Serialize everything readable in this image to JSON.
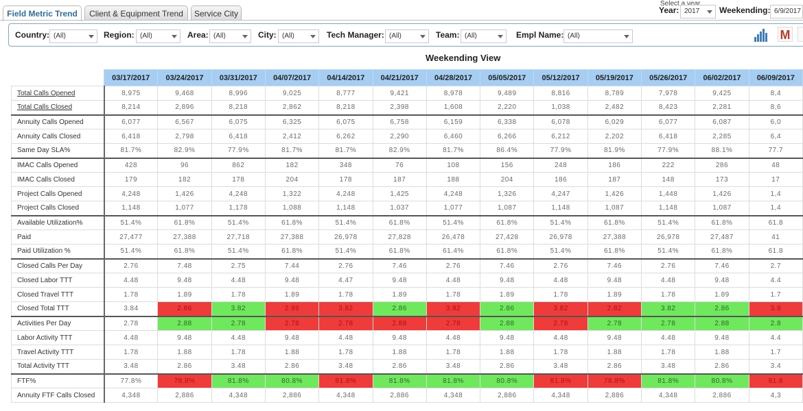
{
  "tabs": [
    {
      "label": "Field Metric Trend",
      "active": true
    },
    {
      "label": "Client & Equipment Trend",
      "active": false
    },
    {
      "label": "Service City",
      "active": false
    }
  ],
  "header": {
    "year_hint": "Select a year",
    "year_label": "Year:",
    "year_value": "2017",
    "weekending_label": "Weekending:",
    "weekending_value": "6/9/2017"
  },
  "filters": [
    {
      "label": "Country:",
      "value": "(All)"
    },
    {
      "label": "Region:",
      "value": "(All)"
    },
    {
      "label": "Area:",
      "value": "(All)"
    },
    {
      "label": "City:",
      "value": "(All)"
    },
    {
      "label": "Tech Manager:",
      "value": "(All)"
    },
    {
      "label": "Team:",
      "value": "(All)"
    },
    {
      "label": "Empl Name:",
      "value": "(All)"
    }
  ],
  "icons": {
    "chart": "bar-chart-icon",
    "m": "M"
  },
  "view_title": "Weekending View",
  "columns": [
    "03/17/2017",
    "03/24/2017",
    "03/31/2017",
    "04/07/2017",
    "04/14/2017",
    "04/21/2017",
    "04/28/2017",
    "05/05/2017",
    "05/12/2017",
    "05/19/2017",
    "05/26/2017",
    "06/02/2017",
    "06/09/2017"
  ],
  "rows": [
    {
      "label": "Total Calls Opened",
      "link": true,
      "group_start": false,
      "values": [
        "8,975",
        "9,468",
        "8,996",
        "9,025",
        "8,777",
        "9,421",
        "8,978",
        "9,489",
        "8,816",
        "8,789",
        "7,978",
        "9,425",
        "8,4"
      ],
      "status": []
    },
    {
      "label": "Total Calls Closed",
      "link": true,
      "group_start": false,
      "values": [
        "8,214",
        "2,896",
        "8,218",
        "2,862",
        "8,218",
        "2,398",
        "1,608",
        "2,220",
        "1,038",
        "2,482",
        "8,423",
        "2,281",
        "8,6"
      ],
      "status": []
    },
    {
      "label": "Annuity Calls Opened",
      "link": false,
      "group_start": true,
      "values": [
        "6,077",
        "6,567",
        "6,075",
        "6,325",
        "6,075",
        "6,758",
        "6,159",
        "6,338",
        "6,078",
        "6,029",
        "6,077",
        "6,087",
        "6,0"
      ],
      "status": []
    },
    {
      "label": "Annuity Calls Closed",
      "link": false,
      "group_start": false,
      "values": [
        "6,418",
        "2,798",
        "6,418",
        "2,412",
        "6,262",
        "2,290",
        "6,460",
        "6,266",
        "6,212",
        "2,202",
        "6,418",
        "2,285",
        "6,4"
      ],
      "status": []
    },
    {
      "label": "Same Day SLA%",
      "link": false,
      "group_start": false,
      "values": [
        "81.7%",
        "82.9%",
        "77.9%",
        "81.7%",
        "81.7%",
        "82.9%",
        "81.7%",
        "86.4%",
        "77.9%",
        "81.9%",
        "77.9%",
        "88.1%",
        "77.7"
      ],
      "status": []
    },
    {
      "label": "IMAC Calls Opened",
      "link": false,
      "group_start": true,
      "values": [
        "428",
        "96",
        "862",
        "182",
        "348",
        "76",
        "108",
        "156",
        "248",
        "186",
        "222",
        "286",
        "48"
      ],
      "status": []
    },
    {
      "label": "IMAC Calls Closed",
      "link": false,
      "group_start": false,
      "values": [
        "179",
        "182",
        "178",
        "204",
        "178",
        "187",
        "188",
        "204",
        "186",
        "187",
        "148",
        "173",
        "17"
      ],
      "status": []
    },
    {
      "label": "Project Calls Opened",
      "link": false,
      "group_start": false,
      "values": [
        "4,248",
        "1,426",
        "4,248",
        "1,322",
        "4,248",
        "1,425",
        "4,248",
        "1,326",
        "4,247",
        "1,426",
        "1,448",
        "1,426",
        "1,4"
      ],
      "status": []
    },
    {
      "label": "Project Calls Closed",
      "link": false,
      "group_start": false,
      "values": [
        "1,148",
        "1,077",
        "1,178",
        "1,088",
        "1,148",
        "1,037",
        "1,077",
        "1,087",
        "1,148",
        "1,087",
        "1,148",
        "1,087",
        "1,4"
      ],
      "status": []
    },
    {
      "label": "Available Utilization%",
      "link": false,
      "group_start": true,
      "values": [
        "51.4%",
        "61.8%",
        "51.4%",
        "61.8%",
        "51.4%",
        "61.8%",
        "51.4%",
        "61.8%",
        "51.4%",
        "61.8%",
        "51.4%",
        "61.8%",
        "61.8"
      ],
      "status": []
    },
    {
      "label": "Paid",
      "link": false,
      "group_start": false,
      "values": [
        "27,477",
        "27,388",
        "27,718",
        "27,388",
        "26,978",
        "27,828",
        "26,478",
        "27,428",
        "26,978",
        "27,388",
        "26,978",
        "27,487",
        "41"
      ],
      "status": []
    },
    {
      "label": "Paid Utilization %",
      "link": false,
      "group_start": false,
      "values": [
        "51.4%",
        "61.8%",
        "51.4%",
        "61.8%",
        "51.4%",
        "61.8%",
        "61.4%",
        "61.8%",
        "51.4%",
        "61.8%",
        "51.4%",
        "61.8%",
        "61.8"
      ],
      "status": []
    },
    {
      "label": "Closed Calls Per Day",
      "link": false,
      "group_start": true,
      "values": [
        "2.76",
        "7.48",
        "2.75",
        "7.44",
        "2.76",
        "7.46",
        "2.76",
        "7.46",
        "2.76",
        "7.46",
        "2.76",
        "7.46",
        "2.7"
      ],
      "status": []
    },
    {
      "label": "Closed Labor TTT",
      "link": false,
      "group_start": false,
      "values": [
        "4.48",
        "9.48",
        "4.48",
        "9.48",
        "4.47",
        "9.48",
        "4.48",
        "9.48",
        "4.48",
        "9.48",
        "4.48",
        "9.48",
        "4.4"
      ],
      "status": []
    },
    {
      "label": "Closed Travel TTT",
      "link": false,
      "group_start": false,
      "values": [
        "1.78",
        "1.89",
        "1.78",
        "1.89",
        "1.78",
        "1.89",
        "1.78",
        "1.89",
        "1.78",
        "1.89",
        "1.78",
        "1.89",
        "1.7"
      ],
      "status": []
    },
    {
      "label": "Closed Total TTT",
      "link": false,
      "group_start": false,
      "values": [
        "3.84",
        "2.86",
        "3.82",
        "2.86",
        "3.82",
        "2.86",
        "3.82",
        "2.86",
        "3.82",
        "2.82",
        "3.82",
        "2.86",
        "3.8"
      ],
      "status": [
        "",
        "red",
        "green",
        "red",
        "red",
        "green",
        "red",
        "green",
        "red",
        "red",
        "green",
        "green",
        "red"
      ]
    },
    {
      "label": "Activities Per Day",
      "link": false,
      "group_start": true,
      "values": [
        "2.78",
        "2.88",
        "2.78",
        "2.78",
        "2.78",
        "2.88",
        "2.78",
        "2.88",
        "2.78",
        "2.78",
        "2.78",
        "2.88",
        "2.8"
      ],
      "status": [
        "",
        "green",
        "green",
        "red",
        "red",
        "red",
        "red",
        "green",
        "red",
        "green",
        "green",
        "green",
        "green"
      ]
    },
    {
      "label": "Labor Activity TTT",
      "link": false,
      "group_start": false,
      "values": [
        "4.48",
        "9.48",
        "4.48",
        "9.48",
        "4.48",
        "9.48",
        "4.48",
        "9.48",
        "4.48",
        "9.48",
        "4.48",
        "9.48",
        "4.4"
      ],
      "status": []
    },
    {
      "label": "Travel Activity TTT",
      "link": false,
      "group_start": false,
      "values": [
        "1.78",
        "1.88",
        "1.78",
        "1.88",
        "1.78",
        "1.88",
        "1.78",
        "1.88",
        "1.78",
        "1.88",
        "1.78",
        "1.88",
        "1.7"
      ],
      "status": []
    },
    {
      "label": "Total Activity TTT",
      "link": false,
      "group_start": false,
      "values": [
        "3.48",
        "2.86",
        "3.48",
        "2.86",
        "3.48",
        "2.86",
        "3.48",
        "2.86",
        "3.48",
        "2.86",
        "3.48",
        "2.86",
        "3.4"
      ],
      "status": []
    },
    {
      "label": "FTF%",
      "link": false,
      "group_start": true,
      "values": [
        "77.8%",
        "78.8%",
        "81.8%",
        "80.8%",
        "81.8%",
        "81.8%",
        "81.8%",
        "80.8%",
        "81.8%",
        "78.8%",
        "81.8%",
        "80.8%",
        "81.8"
      ],
      "status": [
        "",
        "red",
        "green",
        "green",
        "red",
        "green",
        "green",
        "green",
        "red",
        "red",
        "green",
        "green",
        "red"
      ]
    },
    {
      "label": "Annuity FTF Calls Closed",
      "link": false,
      "group_start": false,
      "values": [
        "4,348",
        "2,886",
        "4,348",
        "2,886",
        "4,348",
        "2,886",
        "4,348",
        "2,886",
        "4,348",
        "2,886",
        "4,348",
        "2,886",
        "4,3"
      ],
      "status": []
    }
  ]
}
